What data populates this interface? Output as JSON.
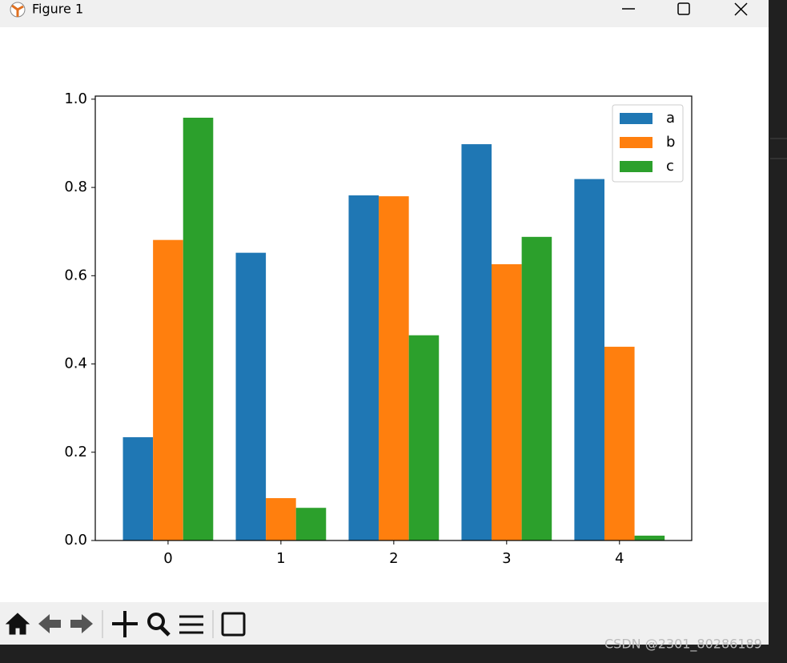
{
  "window": {
    "title": "Figure 1"
  },
  "watermark": "CSDN @2301_80286189",
  "chart_data": {
    "type": "bar",
    "categories": [
      "0",
      "1",
      "2",
      "3",
      "4"
    ],
    "series": [
      {
        "name": "a",
        "color": "#1f77b4",
        "values": [
          0.234,
          0.652,
          0.782,
          0.898,
          0.819
        ]
      },
      {
        "name": "b",
        "color": "#ff7f0e",
        "values": [
          0.681,
          0.096,
          0.78,
          0.626,
          0.439
        ]
      },
      {
        "name": "c",
        "color": "#2ca02c",
        "values": [
          0.958,
          0.074,
          0.465,
          0.688,
          0.011
        ]
      }
    ],
    "ylim": [
      0,
      1.007
    ],
    "yticks": [
      {
        "value": 0,
        "label": "0.0"
      },
      0.2,
      0.4,
      0.6,
      0.8,
      {
        "value": 1,
        "label": "1.0"
      }
    ],
    "xlim": [
      -0.645,
      4.64
    ],
    "legend": "upper right"
  }
}
